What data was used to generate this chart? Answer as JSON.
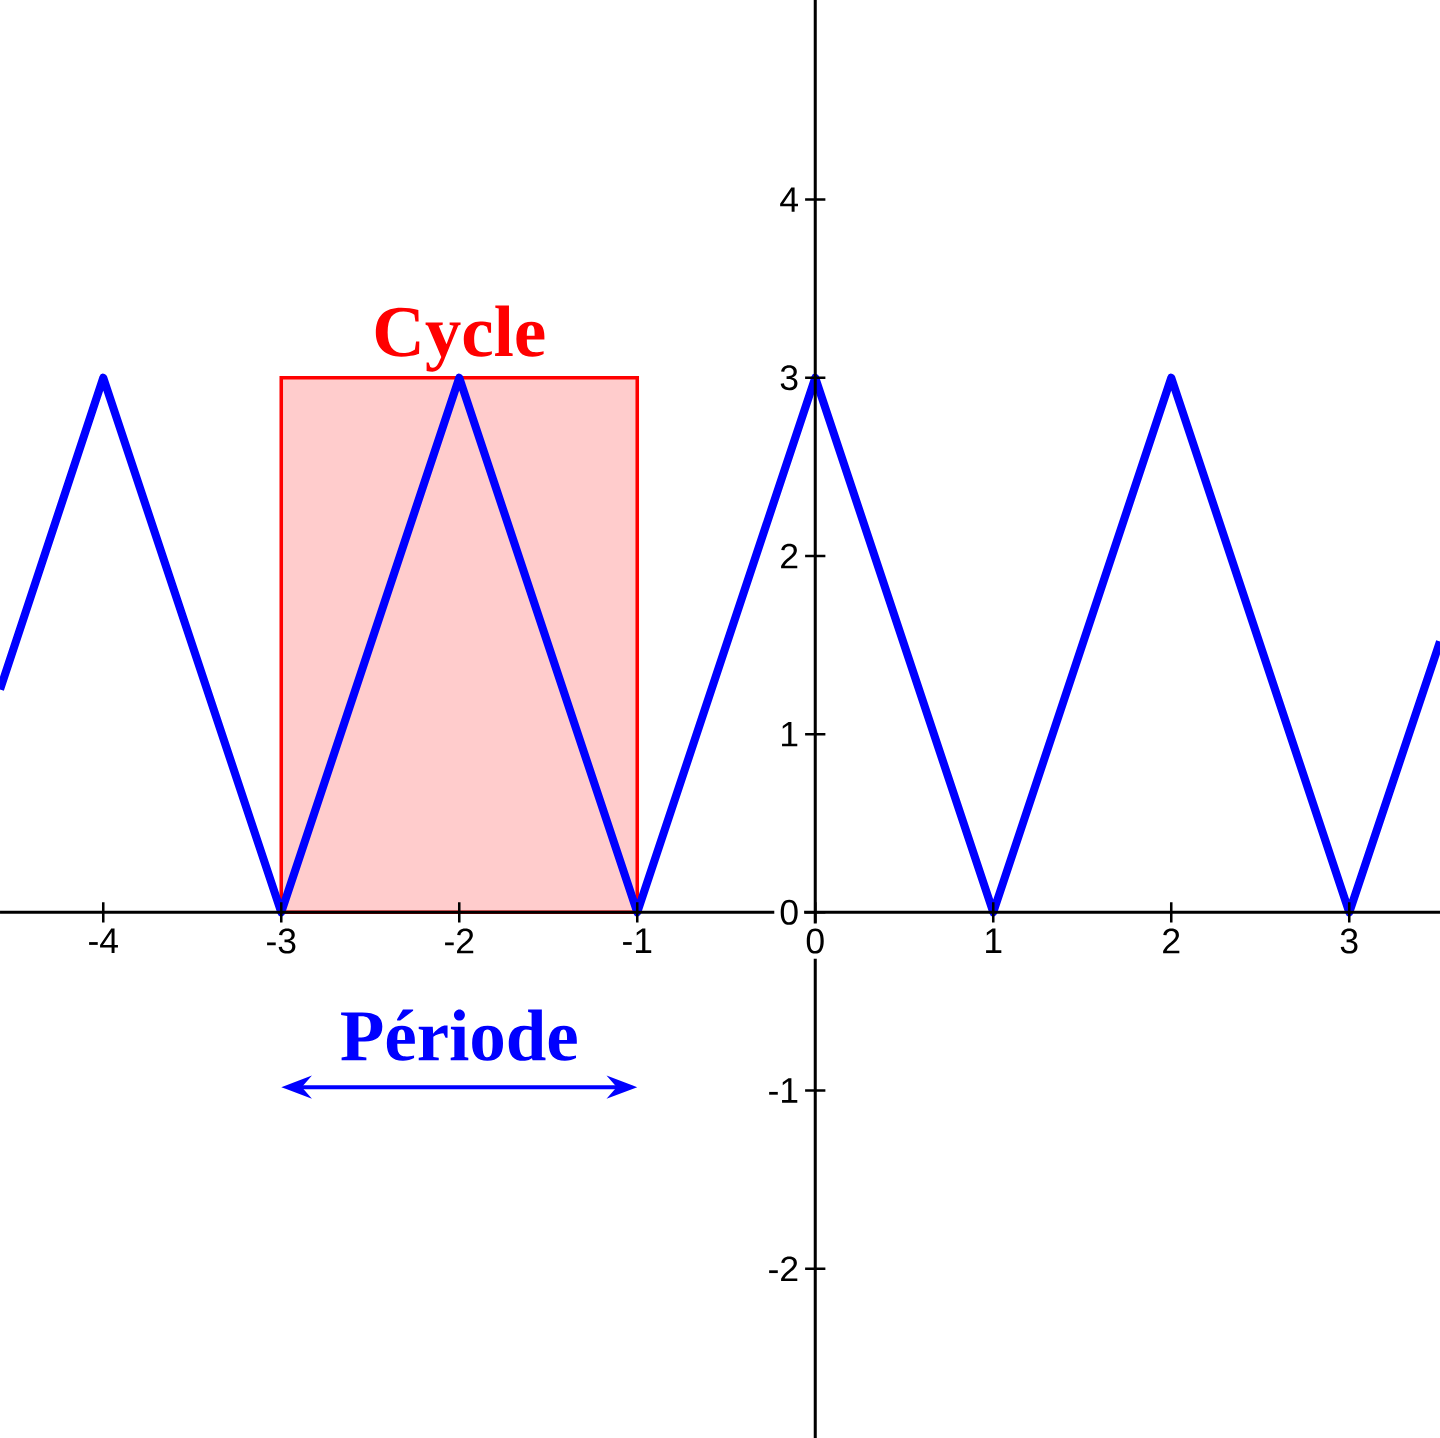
{
  "chart_data": {
    "type": "line",
    "xlim": [
      -4.58,
      3.51
    ],
    "ylim": [
      -2.95,
      5.12
    ],
    "xticks": [
      -4,
      -3,
      -2,
      -1,
      0,
      1,
      2,
      3
    ],
    "yticks": [
      -2,
      -1,
      0,
      1,
      2,
      3,
      4
    ],
    "grid": false,
    "marker": "none",
    "line_style": "solid",
    "series": [
      {
        "name": "Cycle",
        "type": "area",
        "color": "#ff0000",
        "x": [
          -3,
          -1
        ],
        "values": [
          3,
          3
        ]
      },
      {
        "color": "#0000ff",
        "x": [
          -4.58,
          -4,
          -3,
          -2,
          -1,
          0,
          1,
          2,
          3,
          3.51
        ],
        "values": [
          1.25,
          3,
          0,
          3,
          0,
          3,
          0,
          3,
          0,
          1.52
        ]
      }
    ],
    "annotations": [
      "Période"
    ]
  }
}
